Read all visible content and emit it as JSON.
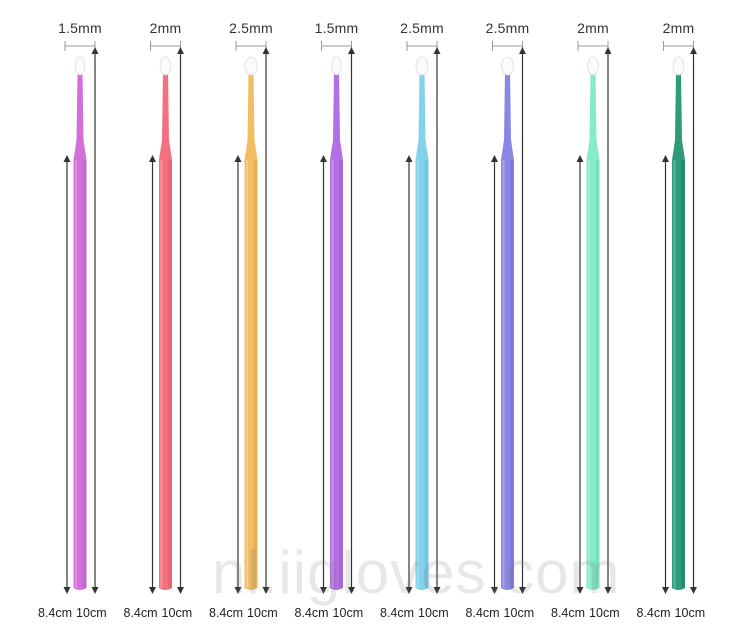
{
  "brushes": [
    {
      "tip_label": "1.5mm",
      "short_length": "8.4cm",
      "long_length": "10cm",
      "color": "#d36fd9",
      "shade": "#b65cc0",
      "tip": 1.5
    },
    {
      "tip_label": "2mm",
      "short_length": "8.4cm",
      "long_length": "10cm",
      "color": "#f4707f",
      "shade": "#de5a6b",
      "tip": 2
    },
    {
      "tip_label": "2.5mm",
      "short_length": "8.4cm",
      "long_length": "10cm",
      "color": "#f2bd63",
      "shade": "#dda54b",
      "tip": 2.5
    },
    {
      "tip_label": "1.5mm",
      "short_length": "8.4cm",
      "long_length": "10cm",
      "color": "#b46fe2",
      "shade": "#9d5ccc",
      "tip": 1.5
    },
    {
      "tip_label": "2.5mm",
      "short_length": "8.4cm",
      "long_length": "10cm",
      "color": "#82d2ec",
      "shade": "#68bdd9",
      "tip": 2.5
    },
    {
      "tip_label": "2.5mm",
      "short_length": "8.4cm",
      "long_length": "10cm",
      "color": "#8a86e6",
      "shade": "#7470d2",
      "tip": 2.5
    },
    {
      "tip_label": "2mm",
      "short_length": "8.4cm",
      "long_length": "10cm",
      "color": "#86ebc9",
      "shade": "#6dd6b2",
      "tip": 2
    },
    {
      "tip_label": "2mm",
      "short_length": "8.4cm",
      "long_length": "10cm",
      "color": "#2e9c78",
      "shade": "#237f61",
      "tip": 2
    }
  ],
  "watermark": "nl.iigloves.com",
  "arrow_color": "#333333"
}
